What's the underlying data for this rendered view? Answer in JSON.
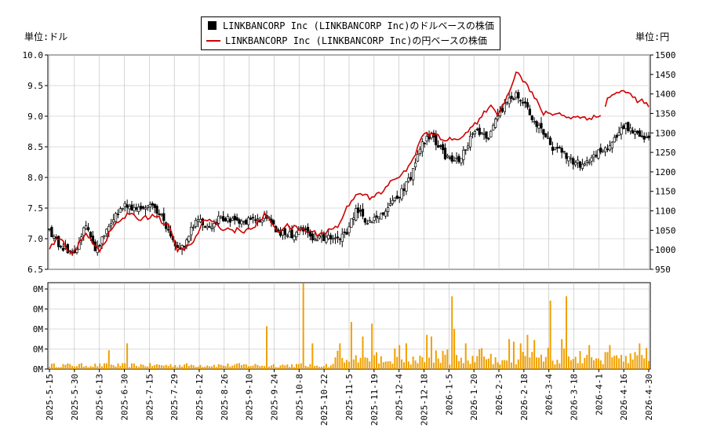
{
  "legend": {
    "usd_label": "LINKBANCORP Inc (LINKBANCORP Inc)のドルベースの株価",
    "jpy_label": "LINKBANCORP Inc (LINKBANCORP Inc)の円ベースの株価"
  },
  "units": {
    "left": "単位:ドル",
    "right": "単位:円"
  },
  "colors": {
    "candle": "#000000",
    "yen_line": "#d00000",
    "volume": "#f0a000",
    "grid": "#bbbbbb"
  },
  "chart_data": {
    "type": "line",
    "price_axis_left": {
      "min": 6.5,
      "max": 10.0,
      "ticks": [
        "6.5",
        "7.0",
        "7.5",
        "8.0",
        "8.5",
        "9.0",
        "9.5",
        "10.0"
      ]
    },
    "price_axis_right": {
      "min": 950,
      "max": 1500,
      "ticks": [
        "950",
        "1000",
        "1050",
        "1100",
        "1150",
        "1200",
        "1250",
        "1300",
        "1350",
        "1400",
        "1450",
        "1500"
      ]
    },
    "volume_axis": {
      "ticks": [
        "0M",
        "0M",
        "0M",
        "0M",
        "0M"
      ]
    },
    "x_ticks": [
      "2025-5-15",
      "2025-5-30",
      "2025-6-13",
      "2025-6-30",
      "2025-7-15",
      "2025-7-29",
      "2025-8-12",
      "2025-8-26",
      "2025-9-10",
      "2025-9-24",
      "2025-10-8",
      "2025-10-22",
      "2025-11-5",
      "2025-11-19",
      "2025-12-4",
      "2025-12-18",
      "2026-1-5",
      "2026-1-20",
      "2026-2-3",
      "2026-2-18",
      "2026-3-4",
      "2026-3-18",
      "2026-4-1",
      "2026-4-16",
      "2026-4-30"
    ],
    "grid": true,
    "series": [
      {
        "name": "LINKBANCORP Inc (LINKBANCORP Inc)のドルベースの株価",
        "type": "candlestick",
        "close_anchors": [
          [
            0,
            7.15
          ],
          [
            5,
            6.85
          ],
          [
            11,
            6.8
          ],
          [
            16,
            7.2
          ],
          [
            20,
            6.8
          ],
          [
            25,
            7.1
          ],
          [
            32,
            7.55
          ],
          [
            38,
            7.45
          ],
          [
            45,
            7.6
          ],
          [
            52,
            7.15
          ],
          [
            56,
            6.85
          ],
          [
            60,
            6.95
          ],
          [
            64,
            7.35
          ],
          [
            70,
            7.2
          ],
          [
            75,
            7.35
          ],
          [
            82,
            7.25
          ],
          [
            90,
            7.3
          ],
          [
            96,
            7.35
          ],
          [
            100,
            7.1
          ],
          [
            106,
            7.05
          ],
          [
            110,
            7.2
          ],
          [
            115,
            7.0
          ],
          [
            120,
            7.0
          ],
          [
            126,
            7.05
          ],
          [
            130,
            7.05
          ],
          [
            134,
            7.5
          ],
          [
            138,
            7.3
          ],
          [
            143,
            7.3
          ],
          [
            148,
            7.5
          ],
          [
            152,
            7.65
          ],
          [
            158,
            8.0
          ],
          [
            162,
            8.5
          ],
          [
            167,
            8.7
          ],
          [
            172,
            8.4
          ],
          [
            176,
            8.25
          ],
          [
            180,
            8.3
          ],
          [
            184,
            8.65
          ],
          [
            188,
            8.75
          ],
          [
            192,
            8.6
          ],
          [
            196,
            9.0
          ],
          [
            200,
            9.25
          ],
          [
            204,
            9.35
          ],
          [
            208,
            9.2
          ],
          [
            212,
            8.9
          ],
          [
            216,
            8.7
          ],
          [
            220,
            8.5
          ],
          [
            224,
            8.4
          ],
          [
            228,
            8.3
          ],
          [
            232,
            8.2
          ],
          [
            236,
            8.25
          ],
          [
            240,
            8.4
          ],
          [
            244,
            8.5
          ],
          [
            248,
            8.7
          ],
          [
            251,
            8.85
          ],
          [
            255,
            8.75
          ],
          [
            259,
            8.7
          ],
          [
            262,
            8.65
          ]
        ]
      },
      {
        "name": "LINKBANCORP Inc (LINKBANCORP Inc)の円ベースの株価",
        "type": "line",
        "anchors": [
          [
            0,
            1000
          ],
          [
            4,
            1030
          ],
          [
            10,
            990
          ],
          [
            16,
            1040
          ],
          [
            22,
            1000
          ],
          [
            28,
            1060
          ],
          [
            34,
            1090
          ],
          [
            40,
            1080
          ],
          [
            46,
            1090
          ],
          [
            52,
            1060
          ],
          [
            56,
            1000
          ],
          [
            62,
            1010
          ],
          [
            68,
            1080
          ],
          [
            74,
            1060
          ],
          [
            80,
            1050
          ],
          [
            88,
            1050
          ],
          [
            94,
            1090
          ],
          [
            100,
            1050
          ],
          [
            104,
            1060
          ],
          [
            112,
            1050
          ],
          [
            118,
            1040
          ],
          [
            126,
            1060
          ],
          [
            132,
            1130
          ],
          [
            136,
            1150
          ],
          [
            140,
            1130
          ],
          [
            146,
            1150
          ],
          [
            150,
            1180
          ],
          [
            156,
            1200
          ],
          [
            160,
            1250
          ],
          [
            164,
            1300
          ],
          [
            170,
            1290
          ],
          [
            176,
            1280
          ],
          [
            182,
            1300
          ],
          [
            188,
            1330
          ],
          [
            192,
            1370
          ],
          [
            196,
            1350
          ],
          [
            200,
            1390
          ],
          [
            204,
            1460
          ],
          [
            208,
            1430
          ],
          [
            212,
            1390
          ],
          [
            216,
            1350
          ],
          [
            222,
            1350
          ],
          [
            228,
            1340
          ],
          [
            234,
            1340
          ],
          [
            240,
            1340
          ],
          [
            242,
            1350
          ],
          [
            244,
            1390
          ],
          [
            248,
            1400
          ],
          [
            252,
            1410
          ],
          [
            255,
            1390
          ],
          [
            259,
            1380
          ],
          [
            262,
            1370
          ]
        ]
      },
      {
        "name": "volume",
        "type": "bar",
        "spikes": [
          [
            111,
            1.0
          ],
          [
            226,
            0.85
          ],
          [
            176,
            0.85
          ],
          [
            219,
            0.8
          ],
          [
            132,
            0.55
          ],
          [
            141,
            0.53
          ],
          [
            95,
            0.5
          ],
          [
            177,
            0.47
          ],
          [
            165,
            0.4
          ],
          [
            137,
            0.38
          ],
          [
            115,
            0.3
          ],
          [
            127,
            0.3
          ],
          [
            167,
            0.38
          ],
          [
            182,
            0.3
          ],
          [
            209,
            0.4
          ],
          [
            212,
            0.34
          ],
          [
            245,
            0.28
          ],
          [
            258,
            0.3
          ],
          [
            224,
            0.35
          ],
          [
            201,
            0.35
          ],
          [
            203,
            0.32
          ],
          [
            206,
            0.3
          ],
          [
            236,
            0.28
          ],
          [
            156,
            0.3
          ],
          [
            153,
            0.28
          ],
          [
            34,
            0.3
          ],
          [
            26,
            0.22
          ]
        ]
      }
    ]
  }
}
